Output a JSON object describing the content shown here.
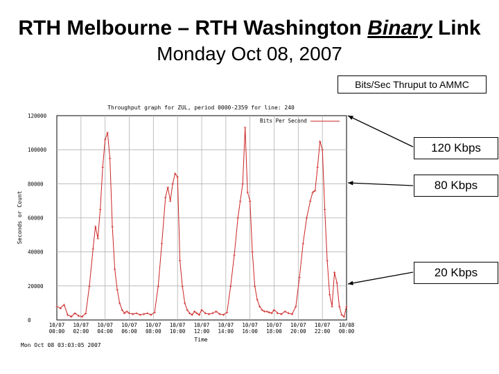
{
  "slide": {
    "title_prefix": "RTH Melbourne – RTH Washington ",
    "title_emph": "Binary",
    "title_suffix": " Link",
    "subtitle": "Monday Oct 08, 2007"
  },
  "callouts": {
    "legend_box": "Bits/Sec Thruput to AMMC",
    "kbps_120": "120 Kbps",
    "kbps_80": "80 Kbps",
    "kbps_20": "20 Kbps"
  },
  "colors": {
    "series": "#cc2222",
    "grid": "#b0b0b0",
    "text": "#000000"
  },
  "chart_data": {
    "type": "line",
    "title": "Throughput graph for ZUL, period 0000-2359 for line: 240",
    "xlabel": "Time",
    "ylabel": "Seconds or Count",
    "ylim": [
      0,
      120000
    ],
    "yticks": [
      "120000",
      "100000",
      "80000",
      "60000",
      "40000",
      "20000",
      "0"
    ],
    "xticks": [
      {
        "date": "10/07",
        "time": "00:00"
      },
      {
        "date": "10/07",
        "time": "02:00"
      },
      {
        "date": "10/07",
        "time": "04:00"
      },
      {
        "date": "10/07",
        "time": "06:00"
      },
      {
        "date": "10/07",
        "time": "08:00"
      },
      {
        "date": "10/07",
        "time": "10:00"
      },
      {
        "date": "10/07",
        "time": "12:00"
      },
      {
        "date": "10/07",
        "time": "14:00"
      },
      {
        "date": "10/07",
        "time": "16:00"
      },
      {
        "date": "10/07",
        "time": "18:00"
      },
      {
        "date": "10/07",
        "time": "20:00"
      },
      {
        "date": "10/07",
        "time": "22:00"
      },
      {
        "date": "10/08",
        "time": "00:00"
      }
    ],
    "footer": "Mon Oct 08 03:03:05 2007",
    "legend": "Bits Per Second",
    "legend_placement": "top-right",
    "grid": true,
    "series": [
      {
        "name": "Bits Per Second",
        "hours": [
          0,
          0.3,
          0.6,
          0.9,
          1.2,
          1.5,
          1.8,
          2.1,
          2.4,
          2.7,
          3.0,
          3.2,
          3.4,
          3.6,
          3.8,
          4.0,
          4.2,
          4.4,
          4.6,
          4.8,
          5.0,
          5.2,
          5.4,
          5.6,
          5.8,
          6.0,
          6.3,
          6.6,
          6.9,
          7.2,
          7.5,
          7.8,
          8.1,
          8.4,
          8.7,
          9.0,
          9.2,
          9.4,
          9.6,
          9.8,
          10.0,
          10.2,
          10.4,
          10.6,
          10.8,
          11.0,
          11.2,
          11.4,
          11.6,
          11.8,
          12.0,
          12.3,
          12.6,
          12.9,
          13.2,
          13.5,
          13.8,
          14.1,
          14.4,
          14.7,
          15.0,
          15.2,
          15.4,
          15.6,
          15.8,
          16.0,
          16.2,
          16.4,
          16.6,
          16.8,
          17.0,
          17.2,
          17.4,
          17.6,
          17.8,
          18.0,
          18.3,
          18.6,
          18.9,
          19.2,
          19.5,
          19.8,
          20.1,
          20.4,
          20.7,
          21.0,
          21.2,
          21.4,
          21.6,
          21.8,
          22.0,
          22.2,
          22.4,
          22.6,
          22.8,
          23.0,
          23.2,
          23.4,
          23.6,
          23.8,
          24.0
        ],
        "values": [
          8000,
          7000,
          9000,
          3000,
          2000,
          4000,
          2500,
          2000,
          4000,
          20000,
          42000,
          55000,
          48000,
          65000,
          90000,
          106000,
          110000,
          95000,
          55000,
          30000,
          18000,
          10000,
          6000,
          4000,
          5000,
          4000,
          3500,
          4000,
          3000,
          3500,
          4000,
          3000,
          4500,
          20000,
          45000,
          72000,
          78000,
          70000,
          80000,
          86000,
          84000,
          35000,
          20000,
          10000,
          6000,
          4000,
          3000,
          5000,
          4000,
          3000,
          6000,
          4000,
          3500,
          4000,
          5000,
          3500,
          3000,
          4500,
          20000,
          38000,
          60000,
          70000,
          80000,
          113000,
          75000,
          70000,
          40000,
          20000,
          12000,
          8000,
          6000,
          5000,
          5000,
          4500,
          4000,
          6000,
          4000,
          3500,
          5000,
          4000,
          3500,
          8000,
          25000,
          45000,
          60000,
          70000,
          75000,
          76000,
          90000,
          105000,
          100000,
          65000,
          35000,
          15000,
          8000,
          28000,
          22000,
          8000,
          3000,
          2000,
          8000
        ]
      }
    ]
  }
}
